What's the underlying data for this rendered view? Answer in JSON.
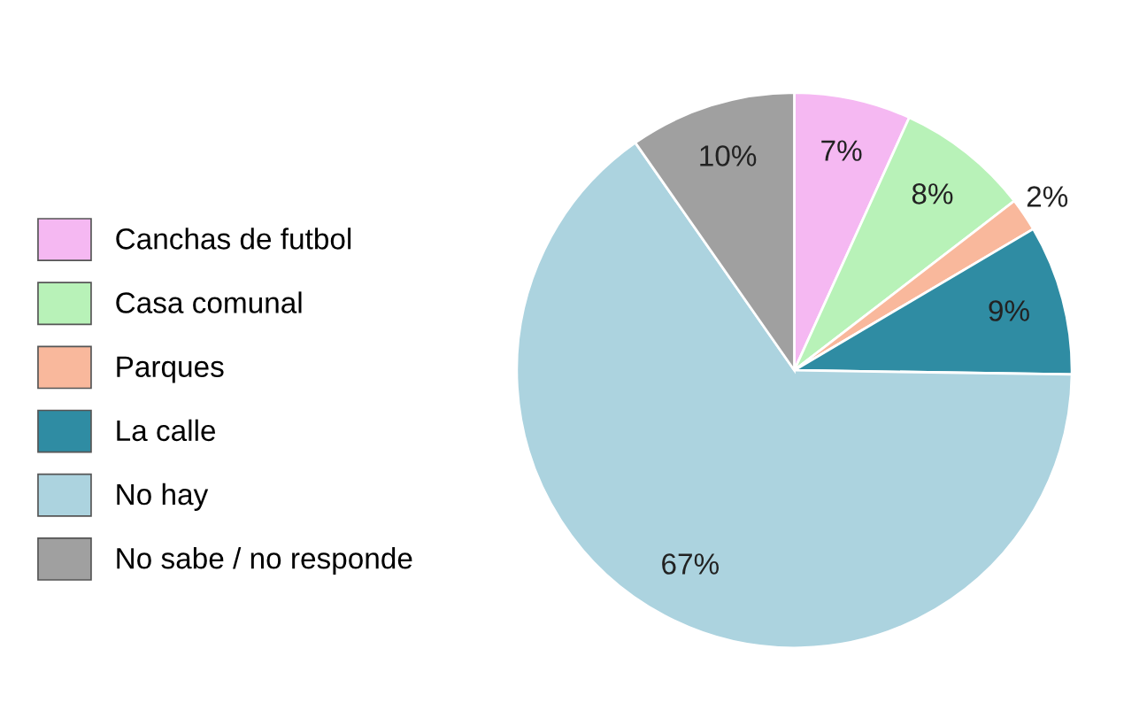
{
  "chart_data": {
    "type": "pie",
    "categories": [
      "Canchas de futbol",
      "Casa comunal",
      "Parques",
      "La calle",
      "No hay",
      "No sabe / no responde"
    ],
    "values": [
      7,
      8,
      2,
      9,
      67,
      10
    ],
    "colors": [
      "#f5b8f2",
      "#b8f2b8",
      "#f9b89c",
      "#2f8ca3",
      "#acd3df",
      "#a0a0a0"
    ],
    "value_labels": [
      "7%",
      "8%",
      "2%",
      "9%",
      "67%",
      "10%"
    ],
    "legend": "left"
  }
}
